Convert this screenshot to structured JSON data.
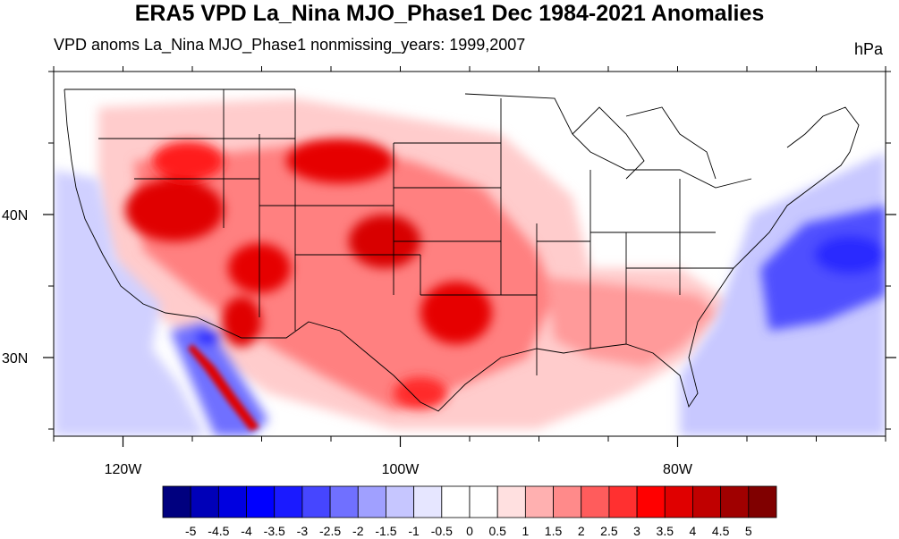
{
  "title": "ERA5 VPD La_Nina MJO_Phase1 Dec 1984-2021 Anomalies",
  "subtitle_left": "VPD anoms La_Nina MJO_Phase1 nonmissing_years: 1999,2007",
  "subtitle_right": "hPa",
  "map": {
    "lon_range": [
      -125,
      -65
    ],
    "lat_range": [
      24.5,
      50
    ],
    "x_ticks": [
      {
        "lon": -120,
        "label": "120W"
      },
      {
        "lon": -100,
        "label": "100W"
      },
      {
        "lon": -80,
        "label": "80W"
      }
    ],
    "y_ticks": [
      {
        "lat": 40,
        "label": "40N"
      },
      {
        "lat": 30,
        "label": "30N"
      }
    ],
    "colors": {
      "strong_pos": "#e60000",
      "mid_pos": "#ff7a7a",
      "weak_pos": "#ffd6d6",
      "strong_neg": "#2a2aff",
      "mid_neg": "#7878ff",
      "weak_neg": "#d8d8ff"
    }
  },
  "colorbar": {
    "colors": [
      "#00007f",
      "#0000b8",
      "#0000e0",
      "#0000ff",
      "#1a1aff",
      "#4646ff",
      "#7070ff",
      "#a0a0ff",
      "#c6c6ff",
      "#e6e6ff",
      "#ffffff",
      "#ffffff",
      "#ffe0e0",
      "#ffb0b0",
      "#ff8a8a",
      "#ff5c5c",
      "#ff3030",
      "#ff0000",
      "#e00000",
      "#c00000",
      "#a00000",
      "#800000"
    ],
    "labels": [
      "-5",
      "-4.5",
      "-4",
      "-3.5",
      "-3",
      "-2.5",
      "-2",
      "-1.5",
      "-1",
      "-0.5",
      "0",
      "0.5",
      "1",
      "1.5",
      "2",
      "2.5",
      "3",
      "3.5",
      "4",
      "4.5",
      "5"
    ]
  }
}
